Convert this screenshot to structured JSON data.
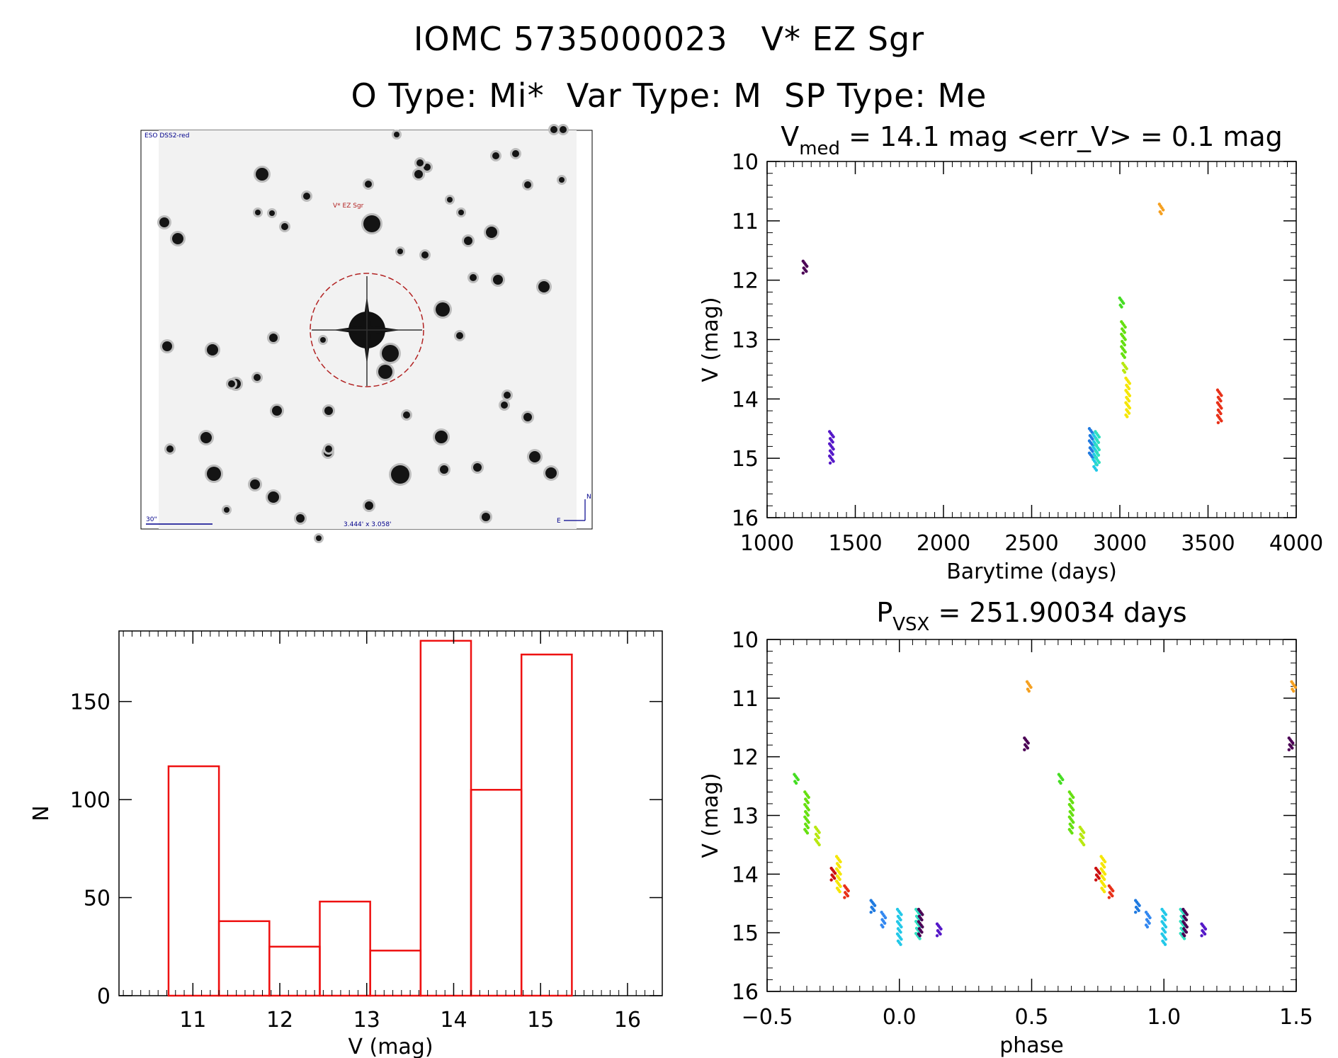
{
  "header": {
    "title_line1": "IOMC 5735000023   V* EZ Sgr",
    "title_line2": "O Type: Mi*  Var Type: M  SP Type: Me"
  },
  "finding_chart": {
    "survey_label": "ESO DSS2-red",
    "target_label": "V* EZ Sgr",
    "scale_label": "30\"",
    "fov_label": "3.444' x 3.058'",
    "north_label": "N",
    "east_label": "E"
  },
  "colors": {
    "axis": "#000000",
    "hist": "#ee1111",
    "target_circle": "#b22222",
    "chart_text": "#00008b"
  },
  "chart_data": [
    {
      "id": "lightcurve",
      "type": "scatter",
      "title_main": "V",
      "title_sub": "med",
      "title_rest": " = 14.1 mag <err_V> = 0.1 mag",
      "xlabel": "Barytime (days)",
      "ylabel": "V (mag)",
      "xlim": [
        1000,
        4000
      ],
      "ylim": [
        10,
        16
      ],
      "y_inverted": true,
      "xticks": [
        1000,
        1500,
        2000,
        2500,
        3000,
        3500,
        4000
      ],
      "yticks": [
        10,
        11,
        12,
        13,
        14,
        15,
        16
      ],
      "groups": [
        {
          "color": "#4b0055",
          "x": 1215,
          "ymin": 11.68,
          "ymax": 11.88
        },
        {
          "color": "#5518c8",
          "x": 1365,
          "ymin": 14.55,
          "ymax": 15.08
        },
        {
          "color": "#1f7ae0",
          "x": 2838,
          "ymin": 14.5,
          "ymax": 15.0
        },
        {
          "color": "#22c8e8",
          "x": 2860,
          "ymin": 14.6,
          "ymax": 15.2
        },
        {
          "color": "#2ee0c0",
          "x": 2872,
          "ymin": 14.55,
          "ymax": 15.1
        },
        {
          "color": "#44dd22",
          "x": 3010,
          "ymin": 12.3,
          "ymax": 12.45
        },
        {
          "color": "#66e010",
          "x": 3020,
          "ymin": 12.7,
          "ymax": 13.3
        },
        {
          "color": "#b8e810",
          "x": 3028,
          "ymin": 13.4,
          "ymax": 13.55
        },
        {
          "color": "#f5e600",
          "x": 3045,
          "ymin": 13.65,
          "ymax": 14.3
        },
        {
          "color": "#f5a020",
          "x": 3235,
          "ymin": 10.72,
          "ymax": 10.88
        },
        {
          "color": "#e83018",
          "x": 3565,
          "ymin": 13.85,
          "ymax": 14.4
        }
      ]
    },
    {
      "id": "phased",
      "type": "scatter",
      "title_main": "P",
      "title_sub": "VSX",
      "title_rest": " = 251.90034 days",
      "xlabel": "phase",
      "ylabel": "V (mag)",
      "xlim": [
        -0.5,
        1.5
      ],
      "ylim": [
        10,
        16
      ],
      "y_inverted": true,
      "xticks": [
        -0.5,
        0.0,
        0.5,
        1.0,
        1.5
      ],
      "xtick_labels": [
        "−0.5",
        "0.0",
        "0.5",
        "1.0",
        "1.5"
      ],
      "yticks": [
        10,
        11,
        12,
        13,
        14,
        15,
        16
      ],
      "groups": [
        {
          "color": "#44dd22",
          "x": -0.39,
          "ymin": 12.3,
          "ymax": 12.45
        },
        {
          "color": "#66e010",
          "x": -0.35,
          "ymin": 12.6,
          "ymax": 13.3
        },
        {
          "color": "#b8e810",
          "x": -0.31,
          "ymin": 13.2,
          "ymax": 13.5
        },
        {
          "color": "#f5e600",
          "x": -0.23,
          "ymin": 13.7,
          "ymax": 14.3
        },
        {
          "color": "#cc1010",
          "x": -0.25,
          "ymin": 13.9,
          "ymax": 14.1
        },
        {
          "color": "#e83018",
          "x": -0.2,
          "ymin": 14.2,
          "ymax": 14.4
        },
        {
          "color": "#1f7ae0",
          "x": -0.1,
          "ymin": 14.45,
          "ymax": 14.65
        },
        {
          "color": "#3388f0",
          "x": -0.06,
          "ymin": 14.65,
          "ymax": 14.9
        },
        {
          "color": "#22c8e8",
          "x": 0.0,
          "ymin": 14.6,
          "ymax": 15.2
        },
        {
          "color": "#2ee0c0",
          "x": 0.07,
          "ymin": 14.6,
          "ymax": 15.1
        },
        {
          "color": "#4b0055",
          "x": 0.08,
          "ymin": 14.6,
          "ymax": 15.05
        },
        {
          "color": "#5518c8",
          "x": 0.15,
          "ymin": 14.85,
          "ymax": 15.05
        },
        {
          "color": "#4b0055",
          "x": 0.48,
          "ymin": 11.68,
          "ymax": 11.88
        },
        {
          "color": "#f5a020",
          "x": 0.49,
          "ymin": 10.72,
          "ymax": 10.88
        },
        {
          "color": "#44dd22",
          "x": 0.61,
          "ymin": 12.3,
          "ymax": 12.45
        },
        {
          "color": "#66e010",
          "x": 0.65,
          "ymin": 12.6,
          "ymax": 13.3
        },
        {
          "color": "#b8e810",
          "x": 0.69,
          "ymin": 13.2,
          "ymax": 13.5
        },
        {
          "color": "#f5e600",
          "x": 0.77,
          "ymin": 13.7,
          "ymax": 14.3
        },
        {
          "color": "#cc1010",
          "x": 0.75,
          "ymin": 13.9,
          "ymax": 14.1
        },
        {
          "color": "#e83018",
          "x": 0.8,
          "ymin": 14.2,
          "ymax": 14.4
        },
        {
          "color": "#1f7ae0",
          "x": 0.9,
          "ymin": 14.45,
          "ymax": 14.65
        },
        {
          "color": "#3388f0",
          "x": 0.94,
          "ymin": 14.65,
          "ymax": 14.9
        },
        {
          "color": "#22c8e8",
          "x": 1.0,
          "ymin": 14.6,
          "ymax": 15.2
        },
        {
          "color": "#2ee0c0",
          "x": 1.07,
          "ymin": 14.6,
          "ymax": 15.1
        },
        {
          "color": "#4b0055",
          "x": 1.08,
          "ymin": 14.6,
          "ymax": 15.05
        },
        {
          "color": "#5518c8",
          "x": 1.15,
          "ymin": 14.85,
          "ymax": 15.05
        },
        {
          "color": "#4b0055",
          "x": 1.48,
          "ymin": 11.68,
          "ymax": 11.88
        },
        {
          "color": "#f5a020",
          "x": 1.49,
          "ymin": 10.72,
          "ymax": 10.88
        }
      ]
    },
    {
      "id": "histogram",
      "type": "bar",
      "title": "",
      "xlabel": "V (mag)",
      "ylabel": "N",
      "xlim": [
        10.15,
        16.4
      ],
      "ylim": [
        0,
        186
      ],
      "xticks": [
        11,
        12,
        13,
        14,
        15,
        16
      ],
      "yticks": [
        0,
        50,
        100,
        150
      ],
      "bin_edges": [
        10.72,
        11.3,
        11.88,
        12.46,
        13.04,
        13.62,
        14.2,
        14.78,
        15.36
      ],
      "values": [
        117,
        38,
        25,
        48,
        23,
        181,
        105,
        174
      ]
    }
  ]
}
